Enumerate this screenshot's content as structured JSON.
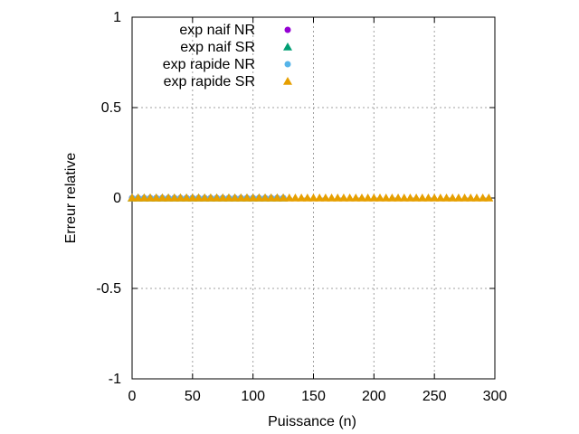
{
  "chart_data": {
    "type": "scatter",
    "title": "",
    "xlabel": "Puissance (n)",
    "ylabel": "Erreur relative",
    "xlim": [
      0,
      300
    ],
    "ylim": [
      -1,
      1
    ],
    "xticks": [
      0,
      50,
      100,
      150,
      200,
      250,
      300
    ],
    "yticks": [
      -1,
      -0.5,
      0,
      0.5,
      1
    ],
    "xtick_labels": [
      "0",
      "50",
      "100",
      "150",
      "200",
      "250",
      "300"
    ],
    "ytick_labels": [
      "-1",
      "-0.5",
      "0",
      "0.5",
      "1"
    ],
    "grid": true,
    "legend_position": "top-left",
    "series": [
      {
        "name": "exp naif NR",
        "marker": "circle",
        "color": "#9400d3",
        "x": [
          0,
          5,
          10,
          15,
          20,
          25,
          30,
          35,
          40,
          45,
          50,
          55,
          60,
          65,
          70,
          75,
          80,
          85,
          90,
          95,
          100,
          105,
          110,
          115,
          120,
          125
        ],
        "y": [
          0,
          0,
          0,
          0,
          0,
          0,
          0,
          0,
          0,
          0,
          0,
          0,
          0,
          0,
          0,
          0,
          0,
          0,
          0,
          0,
          0,
          0,
          0,
          0,
          0,
          0
        ]
      },
      {
        "name": "exp naif SR",
        "marker": "triangle",
        "color": "#009e73",
        "x": [
          0,
          5,
          10,
          15,
          20,
          25,
          30,
          35,
          40,
          45,
          50,
          55,
          60,
          65,
          70,
          75,
          80,
          85,
          90,
          95,
          100,
          105,
          110,
          115,
          120,
          125
        ],
        "y": [
          0,
          0,
          0,
          0,
          0,
          0,
          0,
          0,
          0,
          0,
          0,
          0,
          0,
          0,
          0,
          0,
          0,
          0,
          0,
          0,
          0,
          0,
          0,
          0,
          0,
          0
        ]
      },
      {
        "name": "exp rapide NR",
        "marker": "circle",
        "color": "#56b4e9",
        "x": [
          0,
          5,
          10,
          15,
          20,
          25,
          30,
          35,
          40,
          45,
          50,
          55,
          60,
          65,
          70,
          75,
          80,
          85,
          90,
          95,
          100,
          105,
          110,
          115,
          120,
          125
        ],
        "y": [
          0,
          0,
          0,
          0,
          0,
          0,
          0,
          0,
          0,
          0,
          0,
          0,
          0,
          0,
          0,
          0,
          0,
          0,
          0,
          0,
          0,
          0,
          0,
          0,
          0,
          0
        ]
      },
      {
        "name": "exp rapide SR",
        "marker": "triangle",
        "color": "#e69f00",
        "x": [
          0,
          5,
          10,
          15,
          20,
          25,
          30,
          35,
          40,
          45,
          50,
          55,
          60,
          65,
          70,
          75,
          80,
          85,
          90,
          95,
          100,
          105,
          110,
          115,
          120,
          125,
          130,
          135,
          140,
          145,
          150,
          155,
          160,
          165,
          170,
          175,
          180,
          185,
          190,
          195,
          200,
          205,
          210,
          215,
          220,
          225,
          230,
          235,
          240,
          245,
          250,
          255,
          260,
          265,
          270,
          275,
          280,
          285,
          290,
          295
        ],
        "y": [
          0,
          0,
          0,
          0,
          0,
          0,
          0,
          0,
          0,
          0,
          0,
          0,
          0,
          0,
          0,
          0,
          0,
          0,
          0,
          0,
          0,
          0,
          0,
          0,
          0,
          0,
          0,
          0,
          0,
          0,
          0,
          0,
          0,
          0,
          0,
          0,
          0,
          0,
          0,
          0,
          0,
          0,
          0,
          0,
          0,
          0,
          0,
          0,
          0,
          0,
          0,
          0,
          0,
          0,
          0,
          0,
          0,
          0,
          0,
          0
        ]
      }
    ]
  }
}
